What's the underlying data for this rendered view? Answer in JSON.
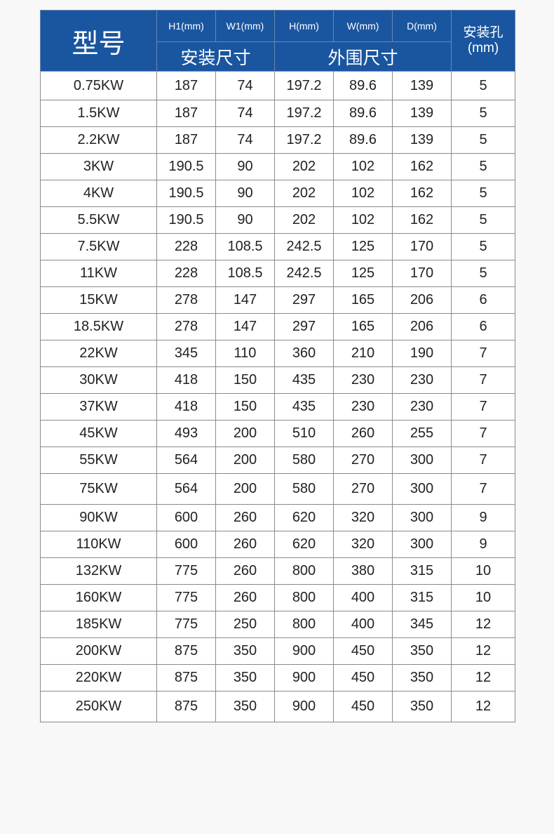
{
  "header": {
    "model": "型号",
    "units": [
      "H1(mm)",
      "W1(mm)",
      "H(mm)",
      "W(mm)",
      "D(mm)"
    ],
    "group_install": "安装尺寸",
    "group_outer": "外围尺寸",
    "hole_line1": "安装孔",
    "hole_line2": "(mm)"
  },
  "colors": {
    "header_bg": "#1a56a0",
    "header_text": "#ffffff",
    "border": "#8a8a8a"
  },
  "rows": [
    [
      "0.75KW",
      "187",
      "74",
      "197.2",
      "89.6",
      "139",
      "5"
    ],
    [
      "1.5KW",
      "187",
      "74",
      "197.2",
      "89.6",
      "139",
      "5"
    ],
    [
      "2.2KW",
      "187",
      "74",
      "197.2",
      "89.6",
      "139",
      "5"
    ],
    [
      "3KW",
      "190.5",
      "90",
      "202",
      "102",
      "162",
      "5"
    ],
    [
      "4KW",
      "190.5",
      "90",
      "202",
      "102",
      "162",
      "5"
    ],
    [
      "5.5KW",
      "190.5",
      "90",
      "202",
      "102",
      "162",
      "5"
    ],
    [
      "7.5KW",
      "228",
      "108.5",
      "242.5",
      "125",
      "170",
      "5"
    ],
    [
      "11KW",
      "228",
      "108.5",
      "242.5",
      "125",
      "170",
      "5"
    ],
    [
      "15KW",
      "278",
      "147",
      "297",
      "165",
      "206",
      "6"
    ],
    [
      "18.5KW",
      "278",
      "147",
      "297",
      "165",
      "206",
      "6"
    ],
    [
      "22KW",
      "345",
      "110",
      "360",
      "210",
      "190",
      "7"
    ],
    [
      "30KW",
      "418",
      "150",
      "435",
      "230",
      "230",
      "7"
    ],
    [
      "37KW",
      "418",
      "150",
      "435",
      "230",
      "230",
      "7"
    ],
    [
      "45KW",
      "493",
      "200",
      "510",
      "260",
      "255",
      "7"
    ],
    [
      "55KW",
      "564",
      "200",
      "580",
      "270",
      "300",
      "7"
    ],
    [
      "75KW",
      "564",
      "200",
      "580",
      "270",
      "300",
      "7"
    ],
    [
      "90KW",
      "600",
      "260",
      "620",
      "320",
      "300",
      "9"
    ],
    [
      "110KW",
      "600",
      "260",
      "620",
      "320",
      "300",
      "9"
    ],
    [
      "132KW",
      "775",
      "260",
      "800",
      "380",
      "315",
      "10"
    ],
    [
      "160KW",
      "775",
      "260",
      "800",
      "400",
      "315",
      "10"
    ],
    [
      "185KW",
      "775",
      "250",
      "800",
      "400",
      "345",
      "12"
    ],
    [
      "200KW",
      "875",
      "350",
      "900",
      "450",
      "350",
      "12"
    ],
    [
      "220KW",
      "875",
      "350",
      "900",
      "450",
      "350",
      "12"
    ],
    [
      "250KW",
      "875",
      "350",
      "900",
      "450",
      "350",
      "12"
    ]
  ]
}
